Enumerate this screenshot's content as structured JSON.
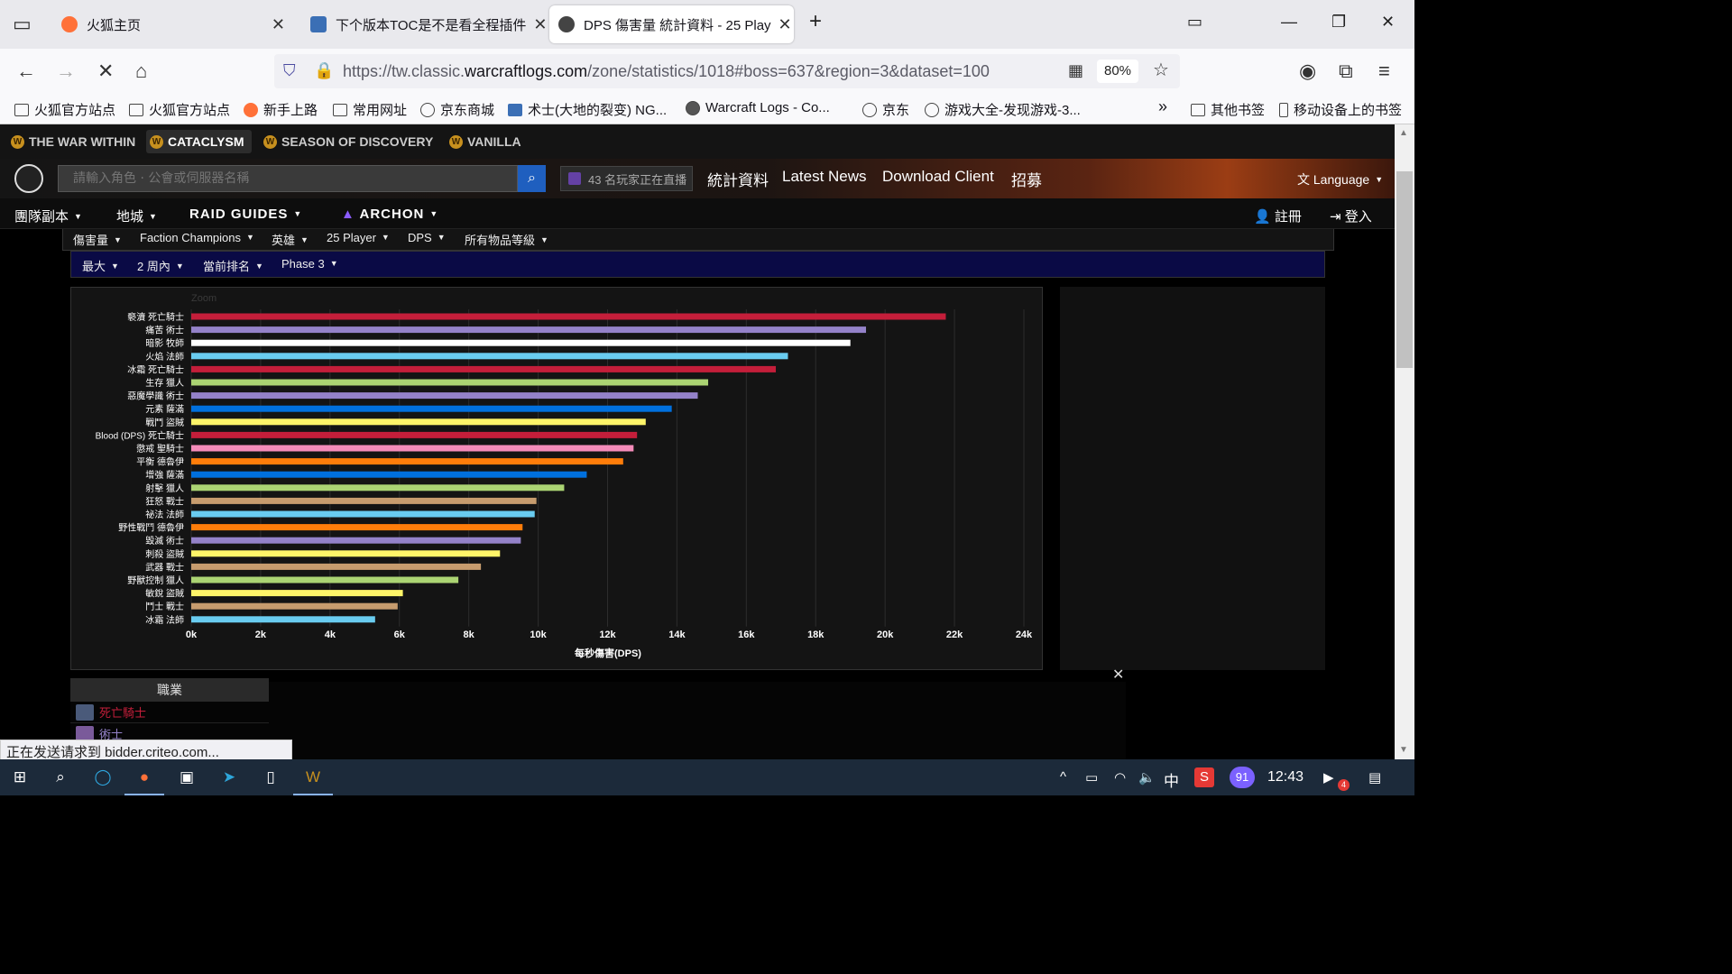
{
  "browser": {
    "tabs": [
      {
        "title": "火狐主页",
        "favicon_color": "#ff7139"
      },
      {
        "title": "下个版本TOC是不是看全程插件",
        "favicon_color": "#3b6fb5"
      },
      {
        "title": "DPS 傷害量 統計資料 - 25 Play",
        "favicon_color": "#444444"
      }
    ],
    "url_prefix": "https://tw.classic.",
    "url_domain": "warcraftlogs.com",
    "url_path": "/zone/statistics/1018#boss=637&region=3&dataset=100",
    "zoom": "80%",
    "bookmarks": [
      "火狐官方站点",
      "火狐官方站点",
      "新手上路",
      "常用网址",
      "京东商城",
      "术士(大地的裂变) NG...",
      "Warcraft Logs - Co...",
      "京东",
      "游戏大全-发现游戏-3..."
    ],
    "bookmarks_right": [
      "其他书签",
      "移动设备上的书签"
    ]
  },
  "site": {
    "games": [
      "THE WAR WITHIN",
      "CATACLYSM",
      "SEASON OF DISCOVERY",
      "VANILLA"
    ],
    "search_placeholder": "請輸入角色 · 公會或伺服器名稱",
    "twitch_label": "43 名玩家正在直播",
    "header_links": [
      "統計資料",
      "Latest News",
      "Download Client",
      "招募"
    ],
    "language": "Language",
    "menu": [
      "團隊副本",
      "地城",
      "RAID GUIDES",
      "ARCHON"
    ],
    "register": "註冊",
    "login": "登入",
    "filters_row1": [
      "傷害量",
      "Faction Champions",
      "英雄",
      "25 Player",
      "DPS",
      "所有物品等級"
    ],
    "filters_row2": [
      "最大",
      "2 周內",
      "當前排名",
      "Phase 3"
    ],
    "zoom_label": "Zoom",
    "class_header": "職業",
    "class_rows": [
      {
        "name": "死亡騎士",
        "color": "#c41e3a"
      },
      {
        "name": "術士",
        "color": "#9482c9"
      }
    ]
  },
  "status_tip": "正在发送请求到 bidder.criteo.com...",
  "taskbar": {
    "ime": "中",
    "badge": "91",
    "time": "12:43",
    "notif_count": "4"
  },
  "chart_data": {
    "type": "bar",
    "orientation": "horizontal",
    "xlabel": "每秒傷害(DPS)",
    "xlim": [
      0,
      24000
    ],
    "xticks": [
      "0k",
      "2k",
      "4k",
      "6k",
      "8k",
      "10k",
      "12k",
      "14k",
      "16k",
      "18k",
      "20k",
      "22k",
      "24k"
    ],
    "grid": true,
    "categories": [
      "褻瀆 死亡騎士",
      "痛苦 術士",
      "暗影 牧師",
      "火焰 法師",
      "冰霜 死亡騎士",
      "生存 獵人",
      "惡魔學識 術士",
      "元素 薩滿",
      "戰鬥 盜賊",
      "Blood (DPS) 死亡騎士",
      "懲戒 聖騎士",
      "平衡 德魯伊",
      "增強 薩滿",
      "射擊 獵人",
      "狂怒 戰士",
      "祕法 法師",
      "野性戰鬥 德魯伊",
      "毀滅 術士",
      "刺殺 盜賊",
      "武器 戰士",
      "野獸控制 獵人",
      "敏銳 盜賊",
      "鬥士 戰士",
      "冰霜 法師"
    ],
    "values": [
      21750,
      19450,
      19000,
      17200,
      16850,
      14900,
      14600,
      13850,
      13100,
      12850,
      12750,
      12450,
      11400,
      10750,
      9950,
      9900,
      9550,
      9500,
      8900,
      8350,
      7700,
      6100,
      5950,
      5300
    ],
    "colors": [
      "#c41e3a",
      "#9482c9",
      "#ffffff",
      "#69ccf0",
      "#c41e3a",
      "#abd473",
      "#9482c9",
      "#0070de",
      "#fff569",
      "#c41e3a",
      "#f58cba",
      "#ff7d0a",
      "#0070de",
      "#abd473",
      "#c79c6e",
      "#69ccf0",
      "#ff7d0a",
      "#9482c9",
      "#fff569",
      "#c79c6e",
      "#abd473",
      "#fff569",
      "#c79c6e",
      "#69ccf0"
    ]
  }
}
